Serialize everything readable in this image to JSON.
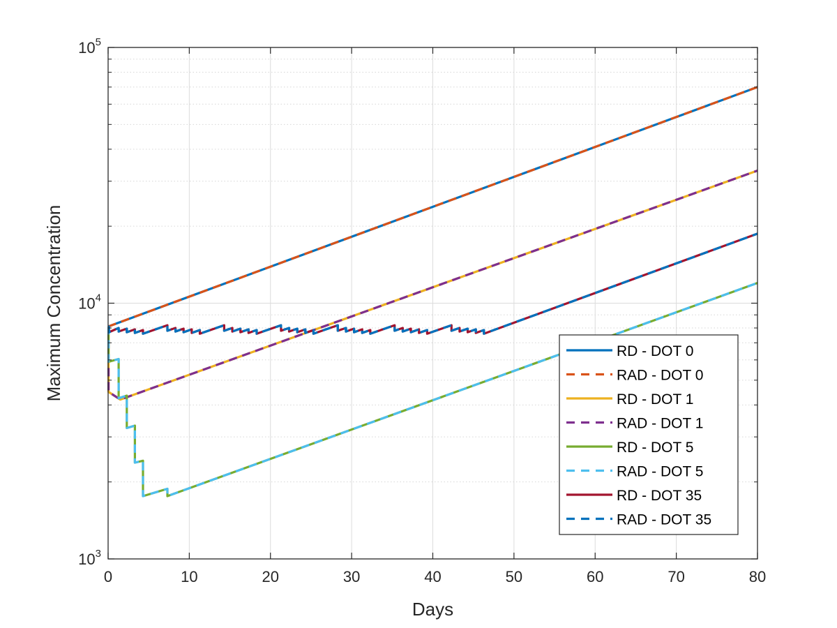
{
  "chart_data": {
    "type": "line",
    "xlabel": "Days",
    "ylabel": "Maximum Concentration",
    "xlim": [
      0,
      80
    ],
    "ylim": [
      1000,
      100000
    ],
    "yscale": "log",
    "grid": true,
    "legend_position": "lower-right",
    "x_ticks": [
      0,
      10,
      20,
      30,
      40,
      50,
      60,
      70,
      80
    ],
    "x_tick_labels": [
      "0",
      "10",
      "20",
      "30",
      "40",
      "50",
      "60",
      "70",
      "80"
    ],
    "y_ticks": [
      1000,
      10000,
      100000
    ],
    "y_tick_labels": [
      {
        "base": "10",
        "exp": "3"
      },
      {
        "base": "10",
        "exp": "4"
      },
      {
        "base": "10",
        "exp": "5"
      }
    ],
    "series": [
      {
        "name": "RD - DOT 0",
        "color": "#0072BD",
        "style": "solid",
        "points": [
          [
            0,
            8100
          ],
          [
            80,
            70000
          ]
        ]
      },
      {
        "name": "RAD - DOT 0",
        "color": "#D95319",
        "style": "dashed",
        "points": [
          [
            0,
            8100
          ],
          [
            80,
            70000
          ]
        ]
      },
      {
        "name": "RD - DOT 1",
        "color": "#EDB120",
        "style": "solid",
        "points": [
          [
            0,
            8100
          ],
          [
            0.05,
            8100
          ],
          [
            0.05,
            4500
          ],
          [
            1.5,
            4200
          ],
          [
            80,
            33000
          ]
        ]
      },
      {
        "name": "RAD - DOT 1",
        "color": "#7E2F8E",
        "style": "dashed",
        "points": [
          [
            0,
            8100
          ],
          [
            0.05,
            8100
          ],
          [
            0.05,
            4500
          ],
          [
            1.5,
            4200
          ],
          [
            80,
            33000
          ]
        ]
      },
      {
        "name": "RD - DOT 5",
        "color": "#77AC30",
        "style": "solid",
        "points": [
          [
            0,
            8100
          ],
          [
            0.05,
            8100
          ],
          [
            0.05,
            5900
          ],
          [
            1.3,
            6050
          ],
          [
            1.3,
            4250
          ],
          [
            2.3,
            4350
          ],
          [
            2.3,
            3250
          ],
          [
            3.3,
            3320
          ],
          [
            3.3,
            2380
          ],
          [
            4.3,
            2420
          ],
          [
            4.3,
            1760
          ],
          [
            7.3,
            1880
          ],
          [
            7.3,
            1760
          ],
          [
            80,
            12000
          ]
        ]
      },
      {
        "name": "RAD - DOT 5",
        "color": "#4DBEEE",
        "style": "dashed",
        "points": [
          [
            0,
            8100
          ],
          [
            0.05,
            8100
          ],
          [
            0.05,
            5900
          ],
          [
            1.3,
            6050
          ],
          [
            1.3,
            4250
          ],
          [
            2.3,
            4350
          ],
          [
            2.3,
            3250
          ],
          [
            3.3,
            3320
          ],
          [
            3.3,
            2380
          ],
          [
            4.3,
            2420
          ],
          [
            4.3,
            1760
          ],
          [
            7.3,
            1880
          ],
          [
            7.3,
            1760
          ],
          [
            80,
            12000
          ]
        ]
      },
      {
        "name": "RD - DOT 35",
        "color": "#A2142F",
        "style": "solid",
        "points": [
          [
            0,
            8100
          ],
          [
            0.1,
            8100
          ],
          [
            0.1,
            7700
          ],
          [
            1.3,
            8000
          ],
          [
            1.3,
            7750
          ],
          [
            2.3,
            7950
          ],
          [
            2.3,
            7700
          ],
          [
            3.3,
            7900
          ],
          [
            3.3,
            7650
          ],
          [
            4.3,
            7850
          ],
          [
            4.3,
            7600
          ],
          [
            7.3,
            8200
          ],
          [
            7.3,
            7800
          ],
          [
            8.3,
            8000
          ],
          [
            8.3,
            7750
          ],
          [
            9.3,
            7950
          ],
          [
            9.3,
            7700
          ],
          [
            10.3,
            7900
          ],
          [
            10.3,
            7650
          ],
          [
            11.3,
            7850
          ],
          [
            11.3,
            7600
          ],
          [
            14.3,
            8200
          ],
          [
            14.3,
            7800
          ],
          [
            15.3,
            8000
          ],
          [
            15.3,
            7750
          ],
          [
            16.3,
            7950
          ],
          [
            16.3,
            7700
          ],
          [
            17.3,
            7900
          ],
          [
            17.3,
            7650
          ],
          [
            18.3,
            7850
          ],
          [
            18.3,
            7600
          ],
          [
            21.3,
            8200
          ],
          [
            21.3,
            7800
          ],
          [
            22.3,
            8000
          ],
          [
            22.3,
            7750
          ],
          [
            23.3,
            7950
          ],
          [
            23.3,
            7700
          ],
          [
            24.3,
            7900
          ],
          [
            24.3,
            7650
          ],
          [
            25.3,
            7850
          ],
          [
            25.3,
            7600
          ],
          [
            28.3,
            8200
          ],
          [
            28.3,
            7800
          ],
          [
            29.3,
            8000
          ],
          [
            29.3,
            7750
          ],
          [
            30.3,
            7950
          ],
          [
            30.3,
            7700
          ],
          [
            31.3,
            7900
          ],
          [
            31.3,
            7650
          ],
          [
            32.3,
            7850
          ],
          [
            32.3,
            7600
          ],
          [
            35.3,
            8200
          ],
          [
            35.3,
            7800
          ],
          [
            36.3,
            8000
          ],
          [
            36.3,
            7750
          ],
          [
            37.3,
            7950
          ],
          [
            37.3,
            7700
          ],
          [
            38.3,
            7900
          ],
          [
            38.3,
            7650
          ],
          [
            39.3,
            7850
          ],
          [
            39.3,
            7600
          ],
          [
            42.3,
            8200
          ],
          [
            42.3,
            7800
          ],
          [
            43.3,
            8000
          ],
          [
            43.3,
            7750
          ],
          [
            44.3,
            7950
          ],
          [
            44.3,
            7700
          ],
          [
            45.3,
            7900
          ],
          [
            45.3,
            7650
          ],
          [
            46.3,
            7850
          ],
          [
            46.3,
            7600
          ],
          [
            80,
            18700
          ]
        ]
      },
      {
        "name": "RAD - DOT 35",
        "color": "#0072BD",
        "style": "dashed",
        "points": [
          [
            0,
            8100
          ],
          [
            0.1,
            8100
          ],
          [
            0.1,
            7700
          ],
          [
            1.3,
            8000
          ],
          [
            1.3,
            7750
          ],
          [
            2.3,
            7950
          ],
          [
            2.3,
            7700
          ],
          [
            3.3,
            7900
          ],
          [
            3.3,
            7650
          ],
          [
            4.3,
            7850
          ],
          [
            4.3,
            7600
          ],
          [
            7.3,
            8200
          ],
          [
            7.3,
            7800
          ],
          [
            8.3,
            8000
          ],
          [
            8.3,
            7750
          ],
          [
            9.3,
            7950
          ],
          [
            9.3,
            7700
          ],
          [
            10.3,
            7900
          ],
          [
            10.3,
            7650
          ],
          [
            11.3,
            7850
          ],
          [
            11.3,
            7600
          ],
          [
            14.3,
            8200
          ],
          [
            14.3,
            7800
          ],
          [
            15.3,
            8000
          ],
          [
            15.3,
            7750
          ],
          [
            16.3,
            7950
          ],
          [
            16.3,
            7700
          ],
          [
            17.3,
            7900
          ],
          [
            17.3,
            7650
          ],
          [
            18.3,
            7850
          ],
          [
            18.3,
            7600
          ],
          [
            21.3,
            8200
          ],
          [
            21.3,
            7800
          ],
          [
            22.3,
            8000
          ],
          [
            22.3,
            7750
          ],
          [
            23.3,
            7950
          ],
          [
            23.3,
            7700
          ],
          [
            24.3,
            7900
          ],
          [
            24.3,
            7650
          ],
          [
            25.3,
            7850
          ],
          [
            25.3,
            7600
          ],
          [
            28.3,
            8200
          ],
          [
            28.3,
            7800
          ],
          [
            29.3,
            8000
          ],
          [
            29.3,
            7750
          ],
          [
            30.3,
            7950
          ],
          [
            30.3,
            7700
          ],
          [
            31.3,
            7900
          ],
          [
            31.3,
            7650
          ],
          [
            32.3,
            7850
          ],
          [
            32.3,
            7600
          ],
          [
            35.3,
            8200
          ],
          [
            35.3,
            7800
          ],
          [
            36.3,
            8000
          ],
          [
            36.3,
            7750
          ],
          [
            37.3,
            7950
          ],
          [
            37.3,
            7700
          ],
          [
            38.3,
            7900
          ],
          [
            38.3,
            7650
          ],
          [
            39.3,
            7850
          ],
          [
            39.3,
            7600
          ],
          [
            42.3,
            8200
          ],
          [
            42.3,
            7800
          ],
          [
            43.3,
            8000
          ],
          [
            43.3,
            7750
          ],
          [
            44.3,
            7950
          ],
          [
            44.3,
            7700
          ],
          [
            45.3,
            7900
          ],
          [
            45.3,
            7650
          ],
          [
            46.3,
            7850
          ],
          [
            46.3,
            7600
          ],
          [
            80,
            18700
          ]
        ]
      }
    ]
  }
}
